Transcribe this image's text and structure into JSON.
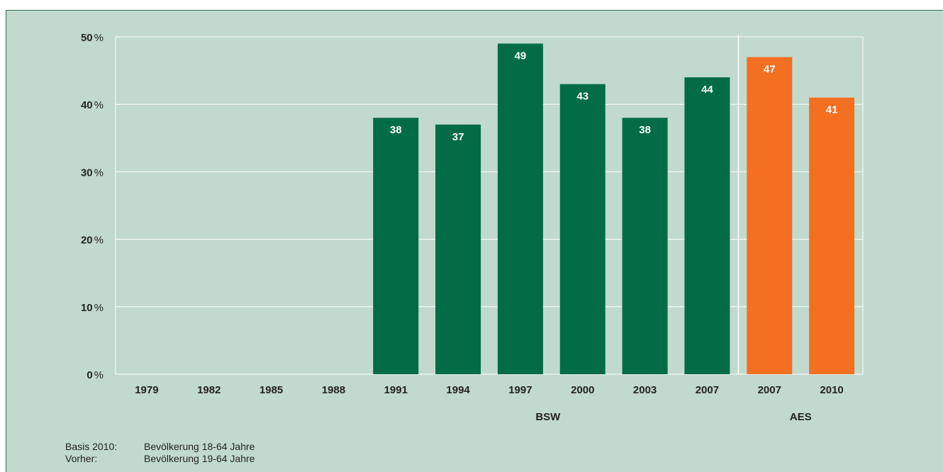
{
  "chart_data": {
    "type": "bar",
    "categories": [
      "1979",
      "1982",
      "1985",
      "1988",
      "1991",
      "1994",
      "1997",
      "2000",
      "2003",
      "2007",
      "2007",
      "2010"
    ],
    "series": [
      {
        "name": "BSW",
        "color": "#016c46",
        "values": [
          null,
          null,
          null,
          null,
          38,
          37,
          49,
          43,
          38,
          44,
          null,
          null
        ]
      },
      {
        "name": "AES",
        "color": "#f37022",
        "values": [
          null,
          null,
          null,
          null,
          null,
          null,
          null,
          null,
          null,
          null,
          47,
          41
        ]
      }
    ],
    "ylim": [
      0,
      50
    ],
    "yticks": [
      {
        "num": "0",
        "unit": "%"
      },
      {
        "num": "10",
        "unit": "%"
      },
      {
        "num": "20",
        "unit": "%"
      },
      {
        "num": "30",
        "unit": "%"
      },
      {
        "num": "40",
        "unit": "%"
      },
      {
        "num": "50",
        "unit": "%"
      }
    ],
    "groups": [
      "BSW",
      "AES"
    ],
    "grid": true,
    "title": "",
    "xlabel": "",
    "ylabel": ""
  },
  "footnotes": [
    {
      "key": "Basis 2010:",
      "text": "Bevölkerung 18-64 Jahre"
    },
    {
      "key": "Vorher:",
      "text": "Bevölkerung 19-64 Jahre"
    }
  ]
}
